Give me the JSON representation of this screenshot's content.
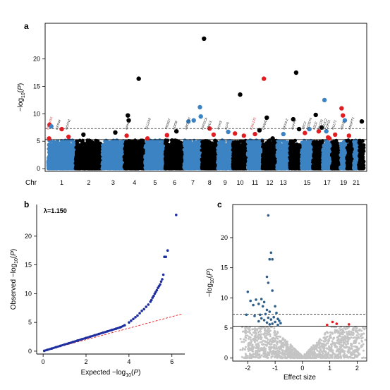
{
  "colors": {
    "blue": "#3c83c3",
    "black": "#000000",
    "red": "#e11d22",
    "grey": "#c4c4c4",
    "qq_blue": "#1f2fa0",
    "volcano_blue": "#2c5f8d",
    "dashed_red": "#e11d22"
  },
  "panels": {
    "a": {
      "label": "a"
    },
    "b": {
      "label": "b"
    },
    "c": {
      "label": "c"
    }
  },
  "chart_data": [
    {
      "panel": "a",
      "type": "scatter",
      "subtype": "manhattan",
      "ylabel": "−log10(P)",
      "xlabel": "",
      "chr_axis_label": "Chr",
      "ylim": [
        -0.5,
        26.5
      ],
      "yticks": [
        0,
        5,
        10,
        15,
        20
      ],
      "chromosome_tick_labels": [
        "1",
        "2",
        "3",
        "4",
        "5",
        "6",
        "7",
        "8",
        "9",
        "10",
        "11",
        "12",
        "13",
        "15",
        "17",
        "19",
        "21"
      ],
      "chromosomes": [
        "1",
        "2",
        "3",
        "4",
        "5",
        "6",
        "7",
        "8",
        "9",
        "10",
        "11",
        "12",
        "13",
        "14",
        "15",
        "16",
        "17",
        "18",
        "19",
        "20",
        "21",
        "22"
      ],
      "chromosome_colors": [
        "blue",
        "black",
        "blue",
        "black",
        "blue",
        "black",
        "blue",
        "black",
        "blue",
        "black",
        "blue",
        "black",
        "blue",
        "black",
        "blue",
        "black",
        "blue",
        "black",
        "blue",
        "black",
        "blue",
        "black"
      ],
      "background_peak_height": 5.2,
      "significance_line": 7.3,
      "suggestive_line": 5.3,
      "top_hits": [
        {
          "chr": 1,
          "pos": 0.06,
          "y": 8.0,
          "color": "red"
        },
        {
          "chr": 1,
          "pos": 0.12,
          "y": 7.7,
          "color": "blue"
        },
        {
          "chr": 1,
          "pos": 0.04,
          "y": 5.5,
          "color": "red"
        },
        {
          "chr": 1,
          "pos": 0.5,
          "y": 7.2,
          "color": "red"
        },
        {
          "chr": 1,
          "pos": 0.75,
          "y": 5.8,
          "color": "red"
        },
        {
          "chr": 2,
          "pos": 0.3,
          "y": 6.2,
          "color": "black"
        },
        {
          "chr": 3,
          "pos": 0.6,
          "y": 6.6,
          "color": "black"
        },
        {
          "chr": 4,
          "pos": 0.18,
          "y": 9.7,
          "color": "black"
        },
        {
          "chr": 4,
          "pos": 0.22,
          "y": 8.8,
          "color": "black"
        },
        {
          "chr": 4,
          "pos": 0.12,
          "y": 6.0,
          "color": "red"
        },
        {
          "chr": 4,
          "pos": 0.7,
          "y": 16.4,
          "color": "black"
        },
        {
          "chr": 5,
          "pos": 0.12,
          "y": 5.5,
          "color": "red"
        },
        {
          "chr": 6,
          "pos": 0.1,
          "y": 6.1,
          "color": "red"
        },
        {
          "chr": 6,
          "pos": 0.6,
          "y": 6.8,
          "color": "black"
        },
        {
          "chr": 7,
          "pos": 0.25,
          "y": 8.6,
          "color": "blue"
        },
        {
          "chr": 7,
          "pos": 0.55,
          "y": 8.8,
          "color": "blue"
        },
        {
          "chr": 7,
          "pos": 0.9,
          "y": 11.2,
          "color": "blue"
        },
        {
          "chr": 7,
          "pos": 0.95,
          "y": 9.5,
          "color": "blue"
        },
        {
          "chr": 8,
          "pos": 0.15,
          "y": 23.7,
          "color": "black"
        },
        {
          "chr": 8,
          "pos": 0.5,
          "y": 7.3,
          "color": "red"
        },
        {
          "chr": 8,
          "pos": 0.75,
          "y": 6.2,
          "color": "red"
        },
        {
          "chr": 9,
          "pos": 0.7,
          "y": 6.7,
          "color": "blue"
        },
        {
          "chr": 10,
          "pos": 0.15,
          "y": 6.4,
          "color": "red"
        },
        {
          "chr": 10,
          "pos": 0.5,
          "y": 13.5,
          "color": "black"
        },
        {
          "chr": 10,
          "pos": 0.75,
          "y": 6.0,
          "color": "red"
        },
        {
          "chr": 11,
          "pos": 0.5,
          "y": 6.3,
          "color": "red"
        },
        {
          "chr": 11,
          "pos": 0.8,
          "y": 7.0,
          "color": "black"
        },
        {
          "chr": 12,
          "pos": 0.1,
          "y": 16.4,
          "color": "red"
        },
        {
          "chr": 12,
          "pos": 0.3,
          "y": 9.3,
          "color": "black"
        },
        {
          "chr": 12,
          "pos": 0.7,
          "y": 5.5,
          "color": "black"
        },
        {
          "chr": 13,
          "pos": 0.5,
          "y": 6.3,
          "color": "blue"
        },
        {
          "chr": 14,
          "pos": 0.3,
          "y": 9.0,
          "color": "black"
        },
        {
          "chr": 14,
          "pos": 0.55,
          "y": 17.5,
          "color": "black"
        },
        {
          "chr": 14,
          "pos": 0.8,
          "y": 7.2,
          "color": "black"
        },
        {
          "chr": 15,
          "pos": 0.3,
          "y": 6.5,
          "color": "red"
        },
        {
          "chr": 15,
          "pos": 0.7,
          "y": 7.2,
          "color": "blue"
        },
        {
          "chr": 16,
          "pos": 0.3,
          "y": 9.8,
          "color": "black"
        },
        {
          "chr": 16,
          "pos": 0.6,
          "y": 6.8,
          "color": "red"
        },
        {
          "chr": 16,
          "pos": 0.9,
          "y": 7.5,
          "color": "black"
        },
        {
          "chr": 17,
          "pos": 0.2,
          "y": 12.5,
          "color": "blue"
        },
        {
          "chr": 17,
          "pos": 0.4,
          "y": 6.8,
          "color": "blue"
        },
        {
          "chr": 17,
          "pos": 0.6,
          "y": 5.7,
          "color": "red"
        },
        {
          "chr": 17,
          "pos": 0.75,
          "y": 5.5,
          "color": "red"
        },
        {
          "chr": 18,
          "pos": 0.4,
          "y": 6.2,
          "color": "red"
        },
        {
          "chr": 19,
          "pos": 0.2,
          "y": 11.0,
          "color": "red"
        },
        {
          "chr": 19,
          "pos": 0.4,
          "y": 9.7,
          "color": "red"
        },
        {
          "chr": 19,
          "pos": 0.7,
          "y": 8.8,
          "color": "blue"
        },
        {
          "chr": 20,
          "pos": 0.3,
          "y": 6.0,
          "color": "red"
        },
        {
          "chr": 22,
          "pos": 0.6,
          "y": 8.6,
          "color": "black"
        }
      ],
      "gene_labels": [
        {
          "chr": 1,
          "pos": 0.02,
          "text": "PRDM16",
          "color": "red"
        },
        {
          "chr": 1,
          "pos": 0.35,
          "text": "CES4A",
          "color": "black"
        },
        {
          "chr": 1,
          "pos": 0.7,
          "text": "NGFN1",
          "color": "black"
        },
        {
          "chr": 4,
          "pos": 0.15,
          "text": "NPNT",
          "color": "black"
        },
        {
          "chr": 5,
          "pos": 0.1,
          "text": "SLC2A9",
          "color": "black"
        },
        {
          "chr": 6,
          "pos": 0.1,
          "text": "TRIM27",
          "color": "black"
        },
        {
          "chr": 6,
          "pos": 0.5,
          "text": "ADGB",
          "color": "black"
        },
        {
          "chr": 7,
          "pos": 0.15,
          "text": "ABCC10",
          "color": "black"
        },
        {
          "chr": 8,
          "pos": 0.1,
          "text": "PPP2CA",
          "color": "black"
        },
        {
          "chr": 8,
          "pos": 0.45,
          "text": "EMC3",
          "color": "black"
        },
        {
          "chr": 9,
          "pos": 0.1,
          "text": "MYH3",
          "color": "black"
        },
        {
          "chr": 9,
          "pos": 0.6,
          "text": "KLF6",
          "color": "black"
        },
        {
          "chr": 11,
          "pos": 0.3,
          "text": "CDC123",
          "color": "red"
        },
        {
          "chr": 12,
          "pos": 0.1,
          "text": "DMWD",
          "color": "black"
        },
        {
          "chr": 13,
          "pos": 0.6,
          "text": "NKX3-2",
          "color": "black"
        },
        {
          "chr": 14,
          "pos": 0.3,
          "text": "RXFP1",
          "color": "black"
        },
        {
          "chr": 15,
          "pos": 0.2,
          "text": "TEC2",
          "color": "black"
        },
        {
          "chr": 15,
          "pos": 0.6,
          "text": "HS3ST4",
          "color": "black"
        },
        {
          "chr": 16,
          "pos": 0.2,
          "text": "FZD2",
          "color": "black"
        },
        {
          "chr": 16,
          "pos": 0.7,
          "text": "PLCD3",
          "color": "black"
        },
        {
          "chr": 17,
          "pos": 0.1,
          "text": "HELIC2",
          "color": "black"
        },
        {
          "chr": 17,
          "pos": 0.5,
          "text": "CDK11",
          "color": "black"
        },
        {
          "chr": 18,
          "pos": 0.2,
          "text": "MLLT1",
          "color": "black"
        },
        {
          "chr": 19,
          "pos": 0.3,
          "text": "RELB",
          "color": "black"
        },
        {
          "chr": 20,
          "pos": 0.5,
          "text": "ANGPT1",
          "color": "black"
        }
      ]
    },
    {
      "panel": "b",
      "type": "scatter",
      "subtype": "qq",
      "xlabel": "Expected −log10(P)",
      "ylabel": "Observed −log10(P)",
      "xlim": [
        -0.3,
        6.6
      ],
      "ylim": [
        -0.5,
        25.5
      ],
      "xticks": [
        0,
        2,
        4,
        6
      ],
      "yticks": [
        0,
        5,
        10,
        15,
        20
      ],
      "annotation": "λ=1.150",
      "lambda": 1.15,
      "reference_line": {
        "slope": 1,
        "intercept": 0,
        "style": "dashed",
        "color": "red"
      },
      "points": [
        [
          0.05,
          0.06
        ],
        [
          0.2,
          0.23
        ],
        [
          0.4,
          0.46
        ],
        [
          0.6,
          0.69
        ],
        [
          0.8,
          0.92
        ],
        [
          1.0,
          1.15
        ],
        [
          1.2,
          1.38
        ],
        [
          1.4,
          1.61
        ],
        [
          1.6,
          1.84
        ],
        [
          1.8,
          2.07
        ],
        [
          2.0,
          2.3
        ],
        [
          2.2,
          2.53
        ],
        [
          2.4,
          2.76
        ],
        [
          2.6,
          2.99
        ],
        [
          2.8,
          3.22
        ],
        [
          3.0,
          3.45
        ],
        [
          3.2,
          3.68
        ],
        [
          3.4,
          3.9
        ],
        [
          3.6,
          4.15
        ],
        [
          3.8,
          4.5
        ],
        [
          4.0,
          5.0
        ],
        [
          4.1,
          5.3
        ],
        [
          4.2,
          5.6
        ],
        [
          4.3,
          5.9
        ],
        [
          4.4,
          6.2
        ],
        [
          4.5,
          6.6
        ],
        [
          4.6,
          7.0
        ],
        [
          4.7,
          7.3
        ],
        [
          4.8,
          7.7
        ],
        [
          4.9,
          8.1
        ],
        [
          5.0,
          8.6
        ],
        [
          5.05,
          8.9
        ],
        [
          5.1,
          9.3
        ],
        [
          5.15,
          9.6
        ],
        [
          5.2,
          10.0
        ],
        [
          5.25,
          10.3
        ],
        [
          5.3,
          10.6
        ],
        [
          5.35,
          11.0
        ],
        [
          5.4,
          11.3
        ],
        [
          5.45,
          11.6
        ],
        [
          5.5,
          12.1
        ],
        [
          5.55,
          12.5
        ],
        [
          5.6,
          13.3
        ],
        [
          5.65,
          16.4
        ],
        [
          5.72,
          16.4
        ],
        [
          5.8,
          17.5
        ],
        [
          6.2,
          23.7
        ]
      ]
    },
    {
      "panel": "c",
      "type": "scatter",
      "subtype": "volcano",
      "xlabel": "Effect size",
      "ylabel": "−log10(P)",
      "xlim": [
        -2.55,
        2.35
      ],
      "ylim": [
        -0.5,
        25.5
      ],
      "xticks": [
        -2,
        -1,
        0,
        1,
        2
      ],
      "yticks": [
        0,
        5,
        10,
        15,
        20
      ],
      "significance_line": 7.3,
      "suggestive_line": 5.3,
      "significant_negative": [
        [
          -1.25,
          23.7
        ],
        [
          -1.15,
          17.5
        ],
        [
          -1.1,
          16.4
        ],
        [
          -1.2,
          16.4
        ],
        [
          -1.3,
          13.5
        ],
        [
          -1.25,
          12.5
        ],
        [
          -1.1,
          11.2
        ],
        [
          -2.0,
          11.0
        ],
        [
          -1.5,
          9.8
        ],
        [
          -1.7,
          9.7
        ],
        [
          -1.9,
          9.5
        ],
        [
          -1.4,
          9.3
        ],
        [
          -1.6,
          9.0
        ],
        [
          -1.8,
          8.8
        ],
        [
          -1.45,
          8.6
        ],
        [
          -1.0,
          8.6
        ],
        [
          -1.3,
          8.0
        ],
        [
          -1.2,
          7.7
        ],
        [
          -0.95,
          7.5
        ],
        [
          -1.35,
          7.3
        ],
        [
          -1.55,
          7.2
        ],
        [
          -2.05,
          7.2
        ],
        [
          -1.75,
          7.0
        ],
        [
          -1.05,
          6.8
        ],
        [
          -1.25,
          6.7
        ],
        [
          -1.5,
          6.6
        ],
        [
          -0.9,
          6.5
        ],
        [
          -1.15,
          6.4
        ],
        [
          -1.4,
          6.3
        ],
        [
          -0.85,
          6.2
        ],
        [
          -1.6,
          6.1
        ],
        [
          -1.0,
          6.0
        ],
        [
          -1.3,
          5.9
        ],
        [
          -0.8,
          5.8
        ],
        [
          -1.1,
          5.7
        ],
        [
          -1.2,
          5.6
        ],
        [
          -0.9,
          5.5
        ]
      ],
      "significant_positive": [
        [
          1.1,
          6.0
        ],
        [
          1.25,
          5.7
        ],
        [
          0.9,
          5.5
        ],
        [
          1.7,
          5.6
        ]
      ]
    }
  ]
}
